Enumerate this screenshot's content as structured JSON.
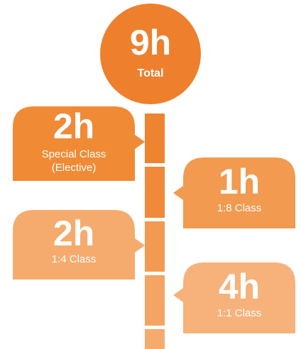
{
  "center": {
    "value": "9h",
    "label": "Total"
  },
  "items": [
    {
      "value": "2h",
      "lines": [
        "Special Class",
        "(Elective)"
      ]
    },
    {
      "value": "1h",
      "lines": [
        "1:8 Class"
      ]
    },
    {
      "value": "2h",
      "lines": [
        "1:4 Class"
      ]
    },
    {
      "value": "4h",
      "lines": [
        "1:1 Class"
      ]
    }
  ]
}
